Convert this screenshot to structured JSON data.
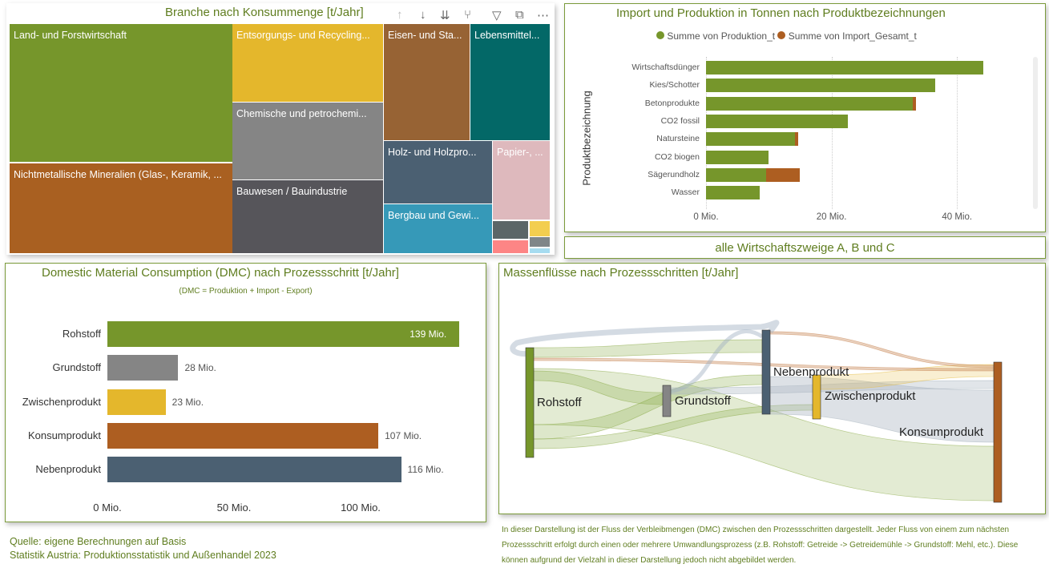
{
  "treemap": {
    "title": "Branche nach Konsummenge [t/Jahr]",
    "tiles": [
      {
        "label": "Land- und Forstwirtschaft",
        "color": "#76962b"
      },
      {
        "label": "Nichtmetallische Mineralien (Glas-, Keramik, ...",
        "color": "#a96021"
      },
      {
        "label": "Entsorgungs- und Recycling...",
        "color": "#e4b72c"
      },
      {
        "label": "Chemische und petrochemi...",
        "color": "#858585"
      },
      {
        "label": "Bauwesen / Bauindustrie",
        "color": "#56555a"
      },
      {
        "label": "Eisen- und Sta...",
        "color": "#976334"
      },
      {
        "label": "Lebensmittel...",
        "color": "#036867"
      },
      {
        "label": "Holz- und Holzpro...",
        "color": "#4b6072"
      },
      {
        "label": "Bergbau und Gewi...",
        "color": "#3699b8"
      },
      {
        "label": "Papier-, ...",
        "color": "#deb9bd"
      }
    ],
    "icons": [
      "arrow-up",
      "arrow-down",
      "double-arrow-down",
      "expand-hierarchy",
      "filter",
      "focus-mode",
      "more-options"
    ]
  },
  "import_chart": {
    "chart_data": {
      "type": "bar",
      "stacked": true,
      "orientation": "horizontal",
      "title": "Import und Produktion in Tonnen nach Produktbezeichnungen",
      "ylabel": "Produktbezeichnung",
      "xlim": [
        0,
        50
      ],
      "xticks": [
        "0 Mio.",
        "20 Mio.",
        "40 Mio."
      ],
      "categories": [
        "Wirtschaftsdünger",
        "Kies/Schotter",
        "Betonprodukte",
        "CO2 fossil",
        "Natursteine",
        "CO2 biogen",
        "Sägerundholz",
        "Wasser"
      ],
      "series": [
        {
          "name": "Summe von Produktion_t",
          "color": "#76962b",
          "values": [
            44.2,
            36.5,
            33.0,
            22.6,
            14.2,
            9.9,
            9.6,
            8.6
          ]
        },
        {
          "name": "Summe von Import_Gesamt_t",
          "color": "#ad5e21",
          "values": [
            0,
            0,
            0.4,
            0,
            0.5,
            0,
            5.4,
            0
          ]
        }
      ]
    }
  },
  "filter_box": {
    "text": "alle Wirtschaftszweige A, B und C"
  },
  "dmc_chart": {
    "chart_data": {
      "type": "bar",
      "orientation": "horizontal",
      "title": "Domestic Material Consumption (DMC) nach Prozessschritt [t/Jahr]",
      "subtitle": "(DMC = Produktion + Import - Export)",
      "xlim": [
        0,
        140
      ],
      "xticks": [
        "0 Mio.",
        "50 Mio.",
        "100 Mio."
      ],
      "categories": [
        "Rohstoff",
        "Grundstoff",
        "Zwischenprodukt",
        "Konsumprodukt",
        "Nebenprodukt"
      ],
      "values": [
        139,
        28,
        23,
        107,
        116
      ],
      "labels": [
        "139 Mio.",
        "28 Mio.",
        "23 Mio.",
        "107 Mio.",
        "116 Mio."
      ],
      "colors": [
        "#76962b",
        "#858585",
        "#e4b72c",
        "#ad5e21",
        "#4b6072"
      ]
    }
  },
  "sankey": {
    "title": "Massenflüsse nach Prozessschritten [t/Jahr]",
    "nodes": [
      "Rohstoff",
      "Grundstoff",
      "Nebenprodukt",
      "Zwischenprodukt",
      "Konsumprodukt"
    ]
  },
  "footer": {
    "source_line1": "Quelle: eigene Berechnungen auf Basis",
    "source_line2": "Statistik Austria: Produktionsstatistik und Außenhandel 2023",
    "note": "In dieser Darstellung ist der Fluss der Verbleibmengen (DMC) zwischen den Prozessschritten dargestellt. Jeder Fluss von einem zum nächsten Prozessschritt erfolgt durch einen oder mehrere Umwandlungsprozess (z.B. Rohstoff: Getreide -> Getreidemühle -> Grundstoff: Mehl, etc.). Diese können aufgrund der Vielzahl in dieser Darstellung jedoch nicht abgebildet werden."
  }
}
